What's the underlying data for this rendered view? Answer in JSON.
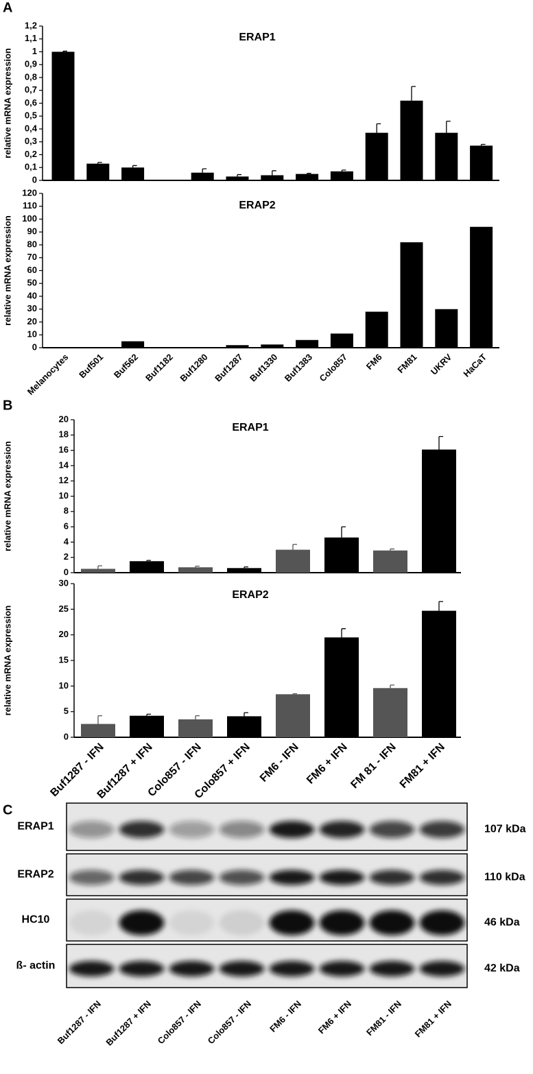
{
  "panel_labels": [
    "A",
    "B",
    "C"
  ],
  "chart_data": [
    {
      "type": "bar",
      "title": "ERAP1",
      "ylabel": "relative mRNA expression",
      "color": "#000000",
      "values": [
        1.0,
        0.13,
        0.1,
        0,
        0.06,
        0.03,
        0.04,
        0.05,
        0.07,
        0.37,
        0.62,
        0.37,
        0.27
      ],
      "errors": [
        0.005,
        0.01,
        0.015,
        0,
        0.03,
        0.015,
        0.035,
        0.005,
        0.01,
        0.07,
        0.11,
        0.09,
        0.01
      ],
      "ylim": [
        0,
        1.2
      ],
      "yticks": [
        0,
        {
          "value": 0.1,
          "label": "0,1"
        },
        {
          "value": 0.2,
          "label": "0,2"
        },
        {
          "value": 0.3,
          "label": "0,3"
        },
        {
          "value": 0.4,
          "label": "0,4"
        },
        {
          "value": 0.5,
          "label": "0,5"
        },
        {
          "value": 0.6,
          "label": "0,6"
        },
        {
          "value": 0.7,
          "label": "0,7"
        },
        {
          "value": 0.8,
          "label": "0,8"
        },
        {
          "value": 0.9,
          "label": "0,9"
        },
        1,
        {
          "value": 1.1,
          "label": "1,1"
        },
        {
          "value": 1.2,
          "label": "1,2"
        }
      ]
    },
    {
      "type": "bar",
      "title": "ERAP2",
      "ylabel": "relative mRNA expression",
      "color": "#000000",
      "categories": [
        "Melanocytes",
        "Buf501",
        "Buf562",
        "Buf1182",
        "Buf1280",
        "Buf1287",
        "Buf1330",
        "Buf1383",
        "Colo857",
        "FM6",
        "FM81",
        "UKRV",
        "HaCaT"
      ],
      "values": [
        0.5,
        0.3,
        5,
        0,
        0,
        2,
        2.5,
        6,
        11,
        28,
        82,
        30,
        94
      ],
      "ylim": [
        0,
        120
      ],
      "yticks": [
        0,
        10,
        20,
        30,
        40,
        50,
        60,
        70,
        80,
        90,
        100,
        110,
        120
      ]
    },
    {
      "type": "bar",
      "title": "ERAP1",
      "ylabel": "relative mRNA expression",
      "colors": [
        "#555555",
        "#000000",
        "#555555",
        "#000000",
        "#555555",
        "#000000",
        "#555555",
        "#000000"
      ],
      "values": [
        0.5,
        1.5,
        0.7,
        0.6,
        3.0,
        4.6,
        2.9,
        16.1
      ],
      "errors": [
        0.4,
        0.1,
        0.15,
        0.15,
        0.7,
        1.4,
        0.2,
        1.7
      ],
      "ylim": [
        0,
        20
      ],
      "yticks": [
        0,
        2,
        4,
        6,
        8,
        10,
        12,
        14,
        16,
        18,
        20
      ]
    },
    {
      "type": "bar",
      "title": "ERAP2",
      "ylabel": "relative mRNA expression",
      "colors": [
        "#555555",
        "#000000",
        "#555555",
        "#000000",
        "#555555",
        "#000000",
        "#555555",
        "#000000"
      ],
      "categories": [
        "Buf1287 - IFN",
        "Buf1287 + IFN",
        "Colo857 - IFN",
        "Colo857 + IFN",
        "FM6 - IFN",
        "FM6 + IFN",
        "FM 81 - IFN",
        "FM81 + IFN"
      ],
      "values": [
        2.6,
        4.2,
        3.5,
        4.1,
        8.4,
        19.5,
        9.6,
        24.7
      ],
      "errors": [
        1.6,
        0.3,
        0.7,
        0.7,
        0.1,
        1.7,
        0.6,
        1.8
      ],
      "ylim": [
        0,
        30
      ],
      "yticks": [
        0,
        5,
        10,
        15,
        20,
        25,
        30
      ]
    }
  ],
  "blot": {
    "rows": [
      {
        "label": "ERAP1",
        "size": "107 kDa"
      },
      {
        "label": "ERAP2",
        "size": "110 kDa"
      },
      {
        "label": "HC10",
        "size": "46 kDa"
      },
      {
        "label": "ß- actin",
        "size": "42 kDa"
      }
    ],
    "lanes": [
      "Buf1287 - IFN",
      "Buf1287 + IFN",
      "Colo857 - IFN",
      "Colo857 - IFN",
      "FM6 - IFN",
      "FM6 + IFN",
      "FM81 - IFN",
      "FM81 + IFN"
    ]
  }
}
